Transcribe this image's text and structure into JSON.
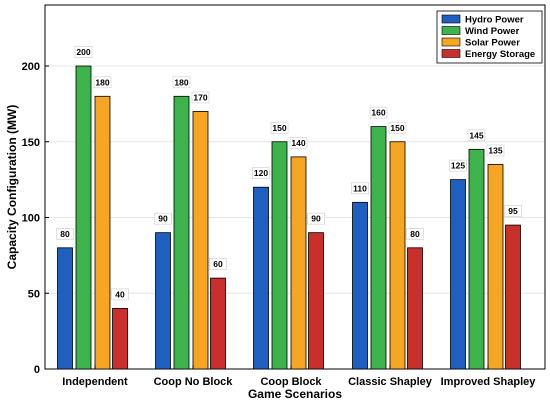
{
  "chart_data": {
    "type": "bar",
    "title": "",
    "xlabel": "Game Scenarios",
    "ylabel": "Capacity Configuration (MW)",
    "ylim": [
      0,
      240
    ],
    "yticks": [
      0,
      50,
      100,
      150,
      200
    ],
    "grid": true,
    "legend_position": "top-right",
    "categories": [
      "Independent",
      "Coop No Block",
      "Coop Block",
      "Classic Shapley",
      "Improved Shapley"
    ],
    "series": [
      {
        "name": "Hydro Power",
        "color": "#1f5fbf",
        "values": [
          80,
          90,
          120,
          110,
          125
        ]
      },
      {
        "name": "Wind Power",
        "color": "#3cb44b",
        "values": [
          200,
          180,
          150,
          160,
          145
        ]
      },
      {
        "name": "Solar Power",
        "color": "#f5a623",
        "values": [
          180,
          170,
          140,
          150,
          135
        ]
      },
      {
        "name": "Energy Storage",
        "color": "#c9302c",
        "values": [
          40,
          60,
          90,
          80,
          95
        ]
      }
    ]
  }
}
